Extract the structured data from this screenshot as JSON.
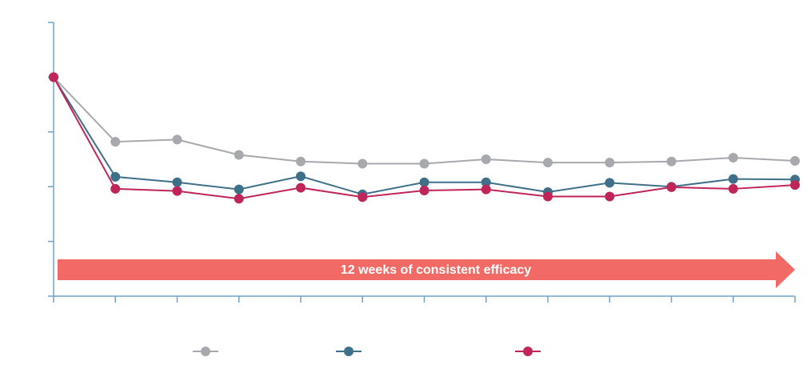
{
  "chart_data": {
    "type": "line",
    "x": [
      0,
      1,
      2,
      3,
      4,
      5,
      6,
      7,
      8,
      9,
      10,
      11,
      12
    ],
    "ylim": [
      0,
      5
    ],
    "yticks": [
      0,
      1,
      2,
      3,
      4,
      5
    ],
    "grid": false,
    "legend_position": "bottom-center",
    "series": [
      {
        "color": "#a7a9ac",
        "values": [
          4.0,
          2.82,
          2.86,
          2.58,
          2.46,
          2.42,
          2.42,
          2.5,
          2.44,
          2.44,
          2.46,
          2.53,
          2.47
        ]
      },
      {
        "color": "#3e7089",
        "values": [
          4.0,
          2.18,
          2.08,
          1.95,
          2.19,
          1.86,
          2.08,
          2.08,
          1.9,
          2.07,
          2.0,
          2.14,
          2.13
        ]
      },
      {
        "color": "#c0255a",
        "values": [
          4.0,
          1.96,
          1.92,
          1.78,
          1.98,
          1.81,
          1.93,
          1.95,
          1.82,
          1.82,
          1.99,
          1.96,
          2.03
        ]
      }
    ],
    "annotation": {
      "text": "12 weeks of consistent efficacy",
      "color": "#f26a65",
      "x_start": 0,
      "x_end": 12
    }
  }
}
